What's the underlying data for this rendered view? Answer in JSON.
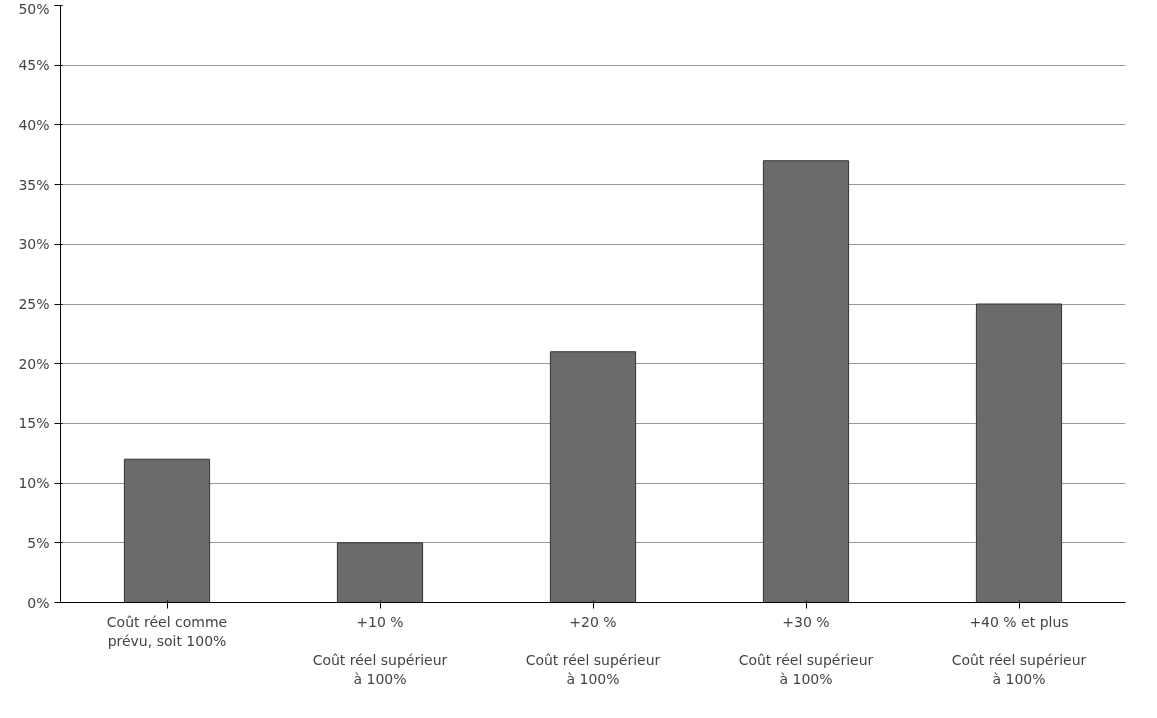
{
  "chart_data": {
    "type": "bar",
    "categories": [
      "Coût réel comme\nprévu, soit 100%",
      "+10 %\n\nCoût réel supérieur\nà 100%",
      "+20 %\n\nCoût réel supérieur\nà 100%",
      "+30 %\n\nCoût réel supérieur\nà 100%",
      "+40 % et plus\n\nCoût réel supérieur\nà 100%"
    ],
    "values": [
      12,
      5,
      21,
      37,
      25
    ],
    "color": "#6b6b6b",
    "ylim": [
      0,
      50
    ],
    "yticks": [
      {
        "value": 0,
        "label": "0%"
      },
      {
        "value": 5,
        "label": "5%"
      },
      {
        "value": 10,
        "label": "10%"
      },
      {
        "value": 15,
        "label": "15%"
      },
      {
        "value": 20,
        "label": "20%"
      },
      {
        "value": 25,
        "label": "25%"
      },
      {
        "value": 30,
        "label": "30%"
      },
      {
        "value": 35,
        "label": "35%"
      },
      {
        "value": 40,
        "label": "40%"
      },
      {
        "value": 45,
        "label": "45%"
      },
      {
        "value": 50,
        "label": "50%"
      }
    ],
    "grid": "y"
  }
}
